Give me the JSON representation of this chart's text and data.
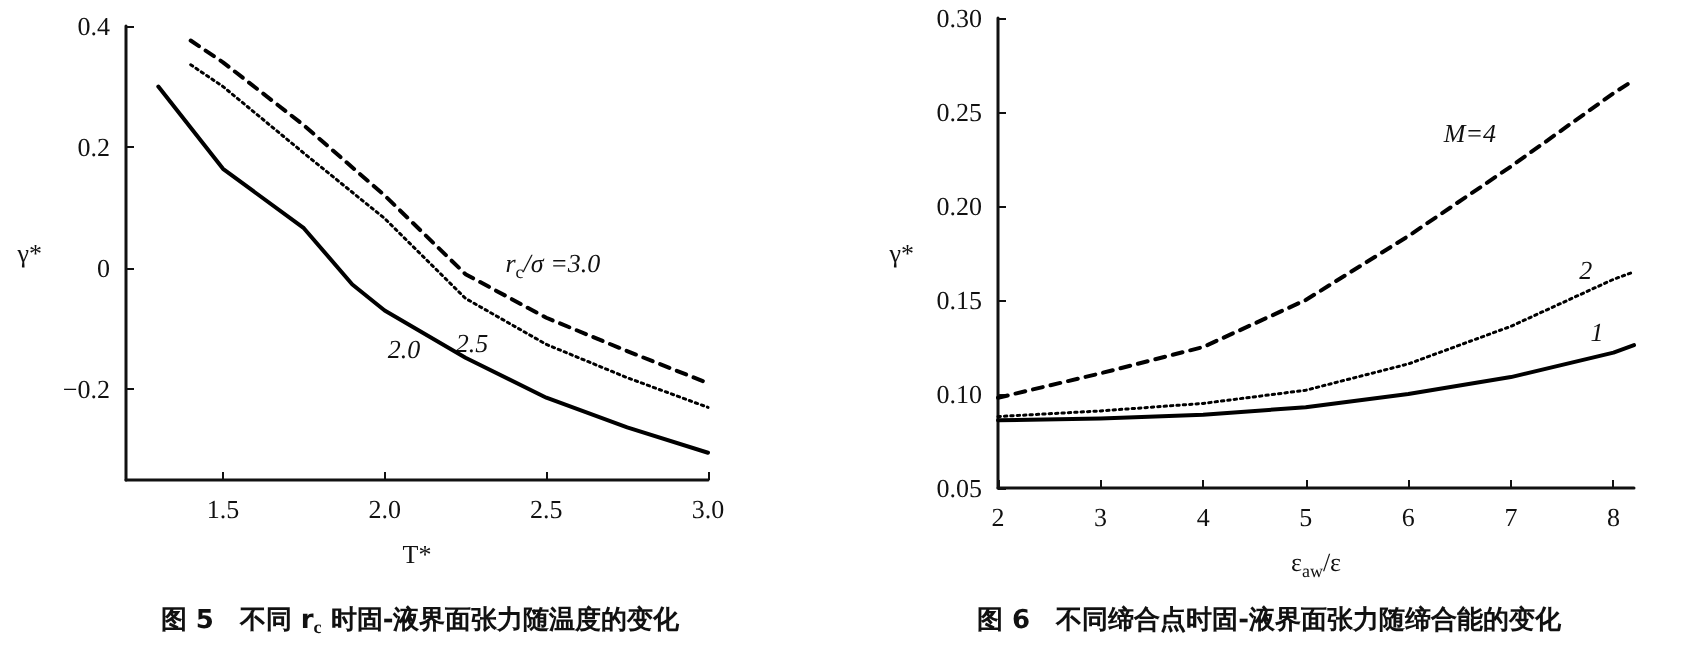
{
  "chart_data": [
    {
      "type": "line",
      "title": "图 5　不同 r$_{c}$ 时固-液界面张力随温度的变化",
      "xlabel": "T*",
      "ylabel": "γ*",
      "xlim": [
        1.2,
        3.0
      ],
      "ylim": [
        -0.35,
        0.4
      ],
      "xticks": [
        {
          "value": 1.5,
          "label": "1.5"
        },
        {
          "value": 2.0,
          "label": "2.0"
        },
        {
          "value": 2.5,
          "label": "2.5"
        },
        {
          "value": 3.0,
          "label": "3.0"
        }
      ],
      "yticks": [
        {
          "value": -0.2,
          "label": "−0.2"
        },
        0,
        0.2,
        0.4
      ],
      "marker": "none",
      "series": [
        {
          "color": "#000000",
          "line_style": "solid",
          "x": [
            1.3,
            1.5,
            1.75,
            1.9,
            2.0,
            2.25,
            2.5,
            2.75,
            3.0
          ],
          "values": [
            0.3,
            0.164,
            0.066,
            -0.027,
            -0.07,
            -0.148,
            -0.214,
            -0.263,
            -0.305
          ]
        },
        {
          "color": "#000000",
          "line_style": "dotted",
          "x": [
            1.4,
            1.5,
            1.75,
            2.0,
            2.25,
            2.5,
            2.75,
            3.0
          ],
          "values": [
            0.336,
            0.3,
            0.19,
            0.082,
            -0.05,
            -0.126,
            -0.181,
            -0.23
          ]
        },
        {
          "color": "#000000",
          "line_style": "dashed",
          "x": [
            1.4,
            1.5,
            1.75,
            2.0,
            2.25,
            2.5,
            2.75,
            3.0
          ],
          "values": [
            0.376,
            0.34,
            0.236,
            0.12,
            -0.01,
            -0.082,
            -0.137,
            -0.19
          ]
        }
      ],
      "annotations": [
        "r$_{c}$/σ =3.0",
        "2.5",
        "2.0"
      ]
    },
    {
      "type": "line",
      "title": "图 6　不同缔合点时固-液界面张力随缔合能的变化",
      "xlabel": "ε$_{aw}$/ε",
      "ylabel": "γ*",
      "xlim": [
        2,
        8.2
      ],
      "ylim": [
        0.05,
        0.3
      ],
      "xticks": [
        2,
        3,
        4,
        5,
        6,
        7,
        8
      ],
      "marker": "none",
      "yticks": [
        {
          "value": 0.05,
          "label": "0.05"
        },
        {
          "value": 0.1,
          "label": "0.10"
        },
        {
          "value": 0.15,
          "label": "0.15"
        },
        {
          "value": 0.2,
          "label": "0.20"
        },
        {
          "value": 0.25,
          "label": "0.25"
        },
        {
          "value": 0.3,
          "label": "0.30"
        }
      ],
      "series": [
        {
          "color": "#000000",
          "line_style": "dashed",
          "x": [
            2,
            3,
            4,
            5,
            6,
            7,
            8,
            8.2
          ],
          "values": [
            0.098,
            0.111,
            0.125,
            0.15,
            0.184,
            0.221,
            0.26,
            0.267
          ]
        },
        {
          "color": "#000000",
          "line_style": "dotted",
          "x": [
            2,
            3,
            4,
            5,
            6,
            7,
            8,
            8.2
          ],
          "values": [
            0.088,
            0.091,
            0.095,
            0.102,
            0.116,
            0.136,
            0.161,
            0.165
          ]
        },
        {
          "color": "#000000",
          "line_style": "solid",
          "x": [
            2,
            3,
            4,
            5,
            6,
            7,
            8,
            8.2
          ],
          "values": [
            0.086,
            0.087,
            0.089,
            0.093,
            0.1,
            0.109,
            0.122,
            0.126
          ]
        }
      ],
      "annotations": [
        "M=4",
        "2",
        "1"
      ]
    }
  ]
}
